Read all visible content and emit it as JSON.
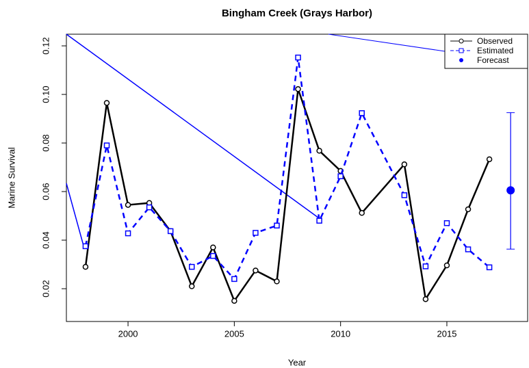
{
  "chart_data": {
    "type": "line",
    "title": "Bingham Creek (Grays Harbor)",
    "x_label": "Year",
    "y_label": "Marine Survival",
    "xlim": [
      1997.1,
      2018.8
    ],
    "ylim": [
      0.0065,
      0.1248
    ],
    "xticks": [
      2000,
      2005,
      2010,
      2015
    ],
    "yticks": [
      {
        "value": 0.02,
        "label": "0.02"
      },
      {
        "value": 0.04,
        "label": "0.04"
      },
      {
        "value": 0.06,
        "label": "0.06"
      },
      {
        "value": 0.08,
        "label": "0.08"
      },
      {
        "value": 0.1,
        "label": "0.10"
      },
      {
        "value": 0.12,
        "label": "0.12"
      }
    ],
    "series": [
      {
        "name": "Observed",
        "color": "#000000",
        "dashed": false,
        "marker": "circle",
        "x": [
          1998,
          1999,
          2000,
          2001,
          2002,
          2003,
          2004,
          2005,
          2006,
          2007,
          2008,
          2009,
          2010,
          2011,
          2013,
          2014,
          2015,
          2016,
          2017
        ],
        "values": [
          0.029,
          0.0965,
          0.0545,
          0.0553,
          0.0437,
          0.021,
          0.037,
          0.015,
          0.0275,
          0.023,
          0.1022,
          0.0768,
          0.0685,
          0.0512,
          0.0712,
          0.0157,
          0.0296,
          0.0527,
          0.0733
        ]
      },
      {
        "name": "Estimated",
        "color": "#0000ff",
        "dashed": true,
        "marker": "square",
        "x": [
          1998,
          1999,
          2000,
          2001,
          2002,
          2003,
          2004,
          2005,
          2006,
          2007,
          2008,
          2009,
          2010,
          2011,
          2013,
          2014,
          2015,
          2016,
          2017
        ],
        "values": [
          0.0375,
          0.079,
          0.0428,
          0.0535,
          0.0437,
          0.029,
          0.0335,
          0.024,
          0.043,
          0.046,
          0.1152,
          0.048,
          0.0663,
          0.0923,
          0.0585,
          0.0292,
          0.047,
          0.0362,
          0.0288
        ]
      }
    ],
    "forecast": {
      "name": "Forecast",
      "color": "#0000ff",
      "x": [
        2018
      ],
      "values": [
        0.0605
      ],
      "lower": [
        0.0363
      ],
      "upper": [
        0.0925
      ]
    },
    "legend": "top-right"
  }
}
